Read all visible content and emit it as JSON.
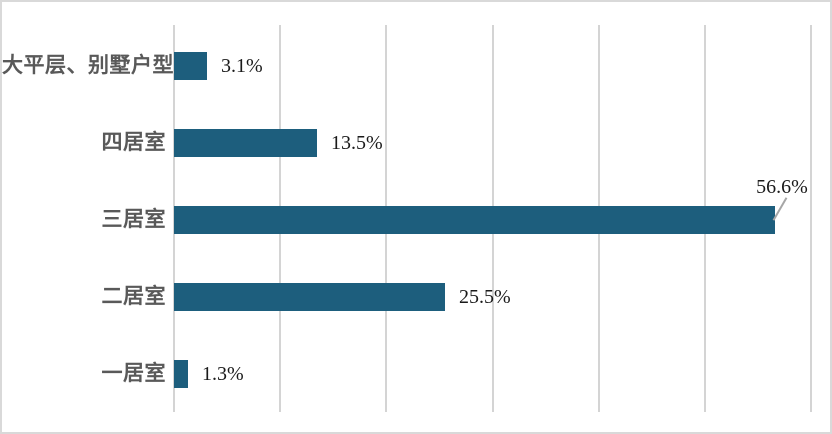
{
  "chart": {
    "background_color": "#ffffff",
    "border_color": "#d9d9d9",
    "bar_color": "#1d5e7d",
    "gridline_color": "#d4d4d4",
    "category_text_color": "#595959",
    "value_text_color": "#1a1a1a",
    "leader_line_color": "#a6a6a6"
  },
  "chart_data": {
    "type": "bar",
    "orientation": "horizontal",
    "title": "",
    "xlabel": "",
    "ylabel": "",
    "categories": [
      "大平层、别墅户型",
      "四居室",
      "三居室",
      "二居室",
      "一居室"
    ],
    "values": [
      3.1,
      13.5,
      56.6,
      25.5,
      1.3
    ],
    "value_labels": [
      "3.1%",
      "13.5%",
      "56.6%",
      "25.5%",
      "1.3%"
    ],
    "label_positions": [
      "beside",
      "beside",
      "above-leader",
      "beside",
      "beside"
    ],
    "xlim": [
      0,
      60
    ],
    "grid_interval": 10,
    "grid": true,
    "legend": false,
    "axis_tick_labels_visible": false
  }
}
